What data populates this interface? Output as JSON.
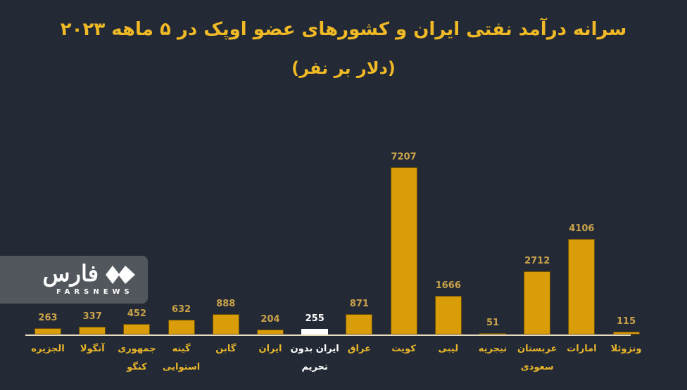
{
  "header": {
    "title": "سرانه درآمد نفتی ایران و کشورهای عضو اوپک در ۵ ماهه ۲۰۲۳",
    "subtitle": "(دلار بر نفر)"
  },
  "logo": {
    "name": "فارس",
    "sub": "FARSNEWS"
  },
  "colors": {
    "background": "#232a35",
    "bar": "#d89d08",
    "highlight_bar": "#ffffff",
    "title": "#f0b925"
  },
  "bars": [
    {
      "label": "الجزیره",
      "line2": "",
      "value": "263",
      "n": 263,
      "highlight": false
    },
    {
      "label": "آنگولا",
      "line2": "",
      "value": "337",
      "n": 337,
      "highlight": false
    },
    {
      "label": "جمهوری",
      "line2": "کنگو",
      "value": "452",
      "n": 452,
      "highlight": false
    },
    {
      "label": "گینه",
      "line2": "استوایی",
      "value": "632",
      "n": 632,
      "highlight": false
    },
    {
      "label": "گابن",
      "line2": "",
      "value": "888",
      "n": 888,
      "highlight": false
    },
    {
      "label": "ایران",
      "line2": "",
      "value": "204",
      "n": 204,
      "highlight": false
    },
    {
      "label": "ایران بدون",
      "line2": "تحریم",
      "value": "255",
      "n": 255,
      "highlight": true
    },
    {
      "label": "عراق",
      "line2": "",
      "value": "871",
      "n": 871,
      "highlight": false
    },
    {
      "label": "کویت",
      "line2": "",
      "value": "7207",
      "n": 7207,
      "highlight": false
    },
    {
      "label": "لیبی",
      "line2": "",
      "value": "1666",
      "n": 1666,
      "highlight": false
    },
    {
      "label": "نیجریه",
      "line2": "",
      "value": "51",
      "n": 51,
      "highlight": false
    },
    {
      "label": "عربستان",
      "line2": "سعودی",
      "value": "2712",
      "n": 2712,
      "highlight": false
    },
    {
      "label": "امارات",
      "line2": "",
      "value": "4106",
      "n": 4106,
      "highlight": false
    },
    {
      "label": "ونزوئلا",
      "line2": "",
      "value": "115",
      "n": 115,
      "highlight": false
    }
  ],
  "chart_data": {
    "type": "bar",
    "title": "سرانه درآمد نفتی ایران و کشورهای عضو اوپک در ۵ ماهه ۲۰۲۳",
    "subtitle": "(دلار بر نفر)",
    "xlabel": "",
    "ylabel": "دلار بر نفر",
    "categories": [
      "الجزیره",
      "آنگولا",
      "جمهوری کنگو",
      "گینه استوایی",
      "گابن",
      "ایران",
      "ایران بدون تحریم",
      "عراق",
      "کویت",
      "لیبی",
      "نیجریه",
      "عربستان سعودی",
      "امارات",
      "ونزوئلا"
    ],
    "values": [
      263,
      337,
      452,
      632,
      888,
      204,
      255,
      871,
      7207,
      1666,
      51,
      2712,
      4106,
      115
    ],
    "highlighted_category": "ایران بدون تحریم",
    "ylim": [
      0,
      7207
    ],
    "grid": false,
    "legend": "none",
    "data_labels": true
  }
}
